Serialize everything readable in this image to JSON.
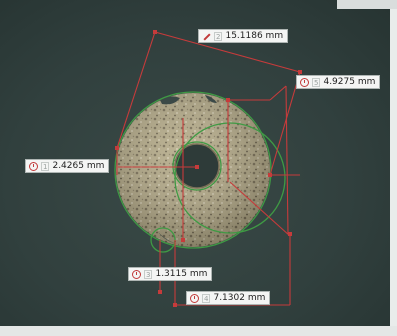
{
  "measurements": [
    {
      "index": "2",
      "value": "15.1186 mm",
      "icon": "pen-icon"
    },
    {
      "index": "5",
      "value": "4.9275 mm",
      "icon": "radius-icon"
    },
    {
      "index": "1",
      "value": "2.4265 mm",
      "icon": "radius-icon"
    },
    {
      "index": "3",
      "value": "1.3115 mm",
      "icon": "radius-icon"
    },
    {
      "index": "4",
      "value": "7.1302 mm",
      "icon": "radius-icon"
    }
  ],
  "colors": {
    "annotation_red": "#c63b3b",
    "annotation_green": "#3f9a44",
    "label_background": "#f4f5f4"
  }
}
